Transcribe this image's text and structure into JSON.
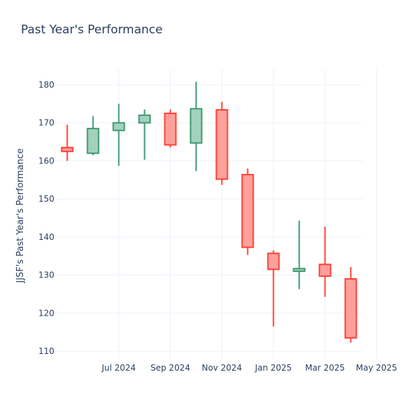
{
  "chart_data": {
    "type": "candlestick",
    "title": "Past Year's Performance",
    "xlabel": "",
    "ylabel": "JJSF's Past Year's Performance",
    "ylim": [
      108,
      184
    ],
    "yticks": [
      110,
      120,
      130,
      140,
      150,
      160,
      170,
      180
    ],
    "xticks": [
      {
        "date": "2024-07",
        "label": "Jul 2024"
      },
      {
        "date": "2024-09",
        "label": "Sep 2024"
      },
      {
        "date": "2024-11",
        "label": "Nov 2024"
      },
      {
        "date": "2025-01",
        "label": "Jan 2025"
      },
      {
        "date": "2025-03",
        "label": "Mar 2025"
      },
      {
        "date": "2025-05",
        "label": "May 2025"
      }
    ],
    "grid": true,
    "colors": {
      "increasing": "#3d9970",
      "increasing_fill": "#a3d1bd",
      "decreasing": "#ff4136",
      "decreasing_fill": "#ffa09b",
      "grid": "#ebf0f8",
      "text": "#2a3f5f"
    },
    "candles": [
      {
        "x": "2024-05",
        "open": 163.5,
        "high": 169.5,
        "low": 160.0,
        "close": 162.5
      },
      {
        "x": "2024-06",
        "open": 162.0,
        "high": 171.8,
        "low": 161.5,
        "close": 168.5
      },
      {
        "x": "2024-07",
        "open": 168.0,
        "high": 175.0,
        "low": 158.7,
        "close": 170.0
      },
      {
        "x": "2024-08",
        "open": 170.0,
        "high": 173.5,
        "low": 160.3,
        "close": 172.0
      },
      {
        "x": "2024-09",
        "open": 172.5,
        "high": 173.5,
        "low": 163.5,
        "close": 164.2
      },
      {
        "x": "2024-10",
        "open": 164.7,
        "high": 180.8,
        "low": 157.3,
        "close": 173.7
      },
      {
        "x": "2024-11",
        "open": 173.4,
        "high": 175.5,
        "low": 153.7,
        "close": 155.2
      },
      {
        "x": "2024-12",
        "open": 156.4,
        "high": 158.0,
        "low": 135.3,
        "close": 137.3
      },
      {
        "x": "2025-01",
        "open": 135.7,
        "high": 136.5,
        "low": 116.5,
        "close": 131.5
      },
      {
        "x": "2025-02",
        "open": 131.0,
        "high": 144.3,
        "low": 126.3,
        "close": 131.7
      },
      {
        "x": "2025-03",
        "open": 132.8,
        "high": 142.7,
        "low": 124.3,
        "close": 129.7
      },
      {
        "x": "2025-04",
        "open": 129.0,
        "high": 132.1,
        "low": 112.3,
        "close": 113.5
      }
    ]
  }
}
